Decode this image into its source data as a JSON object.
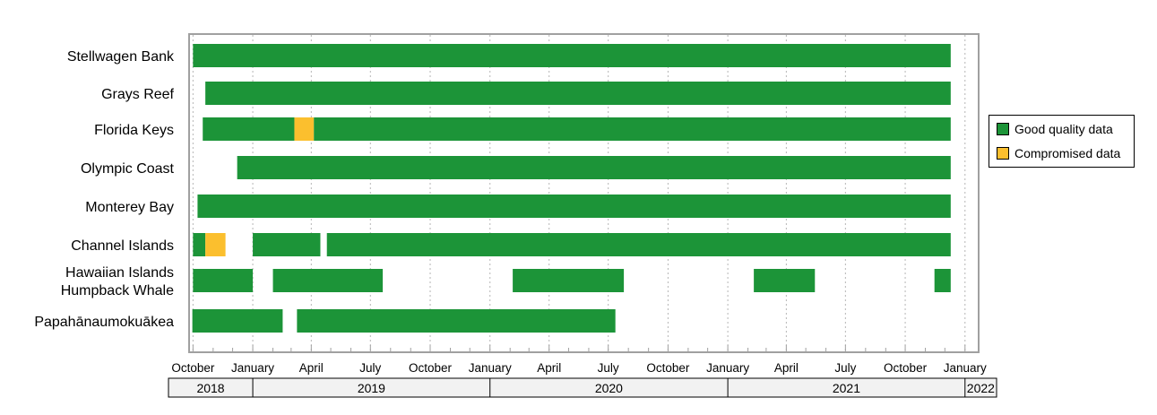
{
  "chart_data": {
    "type": "timeline",
    "categories": [
      "Stellwagen Bank",
      "Grays Reef",
      "Florida Keys",
      "Olympic Coast",
      "Monterey Bay",
      "Channel Islands",
      "Hawaiian Islands Humpback Whale",
      "Papahānaumokuākea"
    ],
    "category_lines": [
      [
        "Stellwagen Bank"
      ],
      [
        "Grays Reef"
      ],
      [
        "Florida Keys"
      ],
      [
        "Olympic Coast"
      ],
      [
        "Monterey Bay"
      ],
      [
        "Channel Islands"
      ],
      [
        "Hawaiian Islands",
        "Humpback Whale"
      ],
      [
        "Papahānaumokuākea"
      ]
    ],
    "series": [
      {
        "name": "Good quality data",
        "color": "#1c9438"
      },
      {
        "name": "Compromised data",
        "color": "#fbbf2e"
      }
    ],
    "xlim": [
      "2018-09-25",
      "2022-01-22"
    ],
    "x_ticks": [
      {
        "date": "2018-10-01",
        "label": "October"
      },
      {
        "date": "2019-01-01",
        "label": "January"
      },
      {
        "date": "2019-04-01",
        "label": "April"
      },
      {
        "date": "2019-07-01",
        "label": "July"
      },
      {
        "date": "2019-10-01",
        "label": "October"
      },
      {
        "date": "2020-01-01",
        "label": "January"
      },
      {
        "date": "2020-04-01",
        "label": "April"
      },
      {
        "date": "2020-07-01",
        "label": "July"
      },
      {
        "date": "2020-10-01",
        "label": "October"
      },
      {
        "date": "2021-01-01",
        "label": "January"
      },
      {
        "date": "2021-04-01",
        "label": "April"
      },
      {
        "date": "2021-07-01",
        "label": "July"
      },
      {
        "date": "2021-10-01",
        "label": "October"
      },
      {
        "date": "2022-01-01",
        "label": "January"
      }
    ],
    "years": [
      {
        "label": "2018",
        "start": "2018-09-25",
        "end": "2019-01-01"
      },
      {
        "label": "2019",
        "start": "2019-01-01",
        "end": "2020-01-01"
      },
      {
        "label": "2020",
        "start": "2020-01-01",
        "end": "2021-01-01"
      },
      {
        "label": "2021",
        "start": "2021-01-01",
        "end": "2022-01-01"
      },
      {
        "label": "2022",
        "start": "2022-01-01",
        "end": "2022-01-22"
      }
    ],
    "segments": [
      {
        "category": 0,
        "series": 0,
        "start": "2018-10-01",
        "end": "2021-12-10"
      },
      {
        "category": 1,
        "series": 0,
        "start": "2018-10-20",
        "end": "2021-12-10"
      },
      {
        "category": 2,
        "series": 0,
        "start": "2018-10-16",
        "end": "2019-03-06"
      },
      {
        "category": 2,
        "series": 1,
        "start": "2019-03-06",
        "end": "2019-04-05"
      },
      {
        "category": 2,
        "series": 0,
        "start": "2019-04-05",
        "end": "2021-12-10"
      },
      {
        "category": 3,
        "series": 0,
        "start": "2018-12-08",
        "end": "2021-12-10"
      },
      {
        "category": 4,
        "series": 0,
        "start": "2018-10-08",
        "end": "2021-12-10"
      },
      {
        "category": 5,
        "series": 0,
        "start": "2018-10-01",
        "end": "2018-10-20"
      },
      {
        "category": 5,
        "series": 1,
        "start": "2018-10-20",
        "end": "2018-11-20"
      },
      {
        "category": 5,
        "series": 0,
        "start": "2019-01-01",
        "end": "2019-04-15"
      },
      {
        "category": 5,
        "series": 0,
        "start": "2019-04-25",
        "end": "2021-12-10"
      },
      {
        "category": 6,
        "series": 0,
        "start": "2018-10-01",
        "end": "2019-01-01"
      },
      {
        "category": 6,
        "series": 0,
        "start": "2019-02-01",
        "end": "2019-07-20"
      },
      {
        "category": 6,
        "series": 0,
        "start": "2020-02-05",
        "end": "2020-07-25"
      },
      {
        "category": 6,
        "series": 0,
        "start": "2021-02-10",
        "end": "2021-05-15"
      },
      {
        "category": 6,
        "series": 0,
        "start": "2021-11-15",
        "end": "2021-12-10"
      },
      {
        "category": 7,
        "series": 0,
        "start": "2018-09-30",
        "end": "2019-02-16"
      },
      {
        "category": 7,
        "series": 0,
        "start": "2019-03-10",
        "end": "2020-07-12"
      }
    ],
    "grid": "vertical-dotted",
    "legend": "right"
  }
}
